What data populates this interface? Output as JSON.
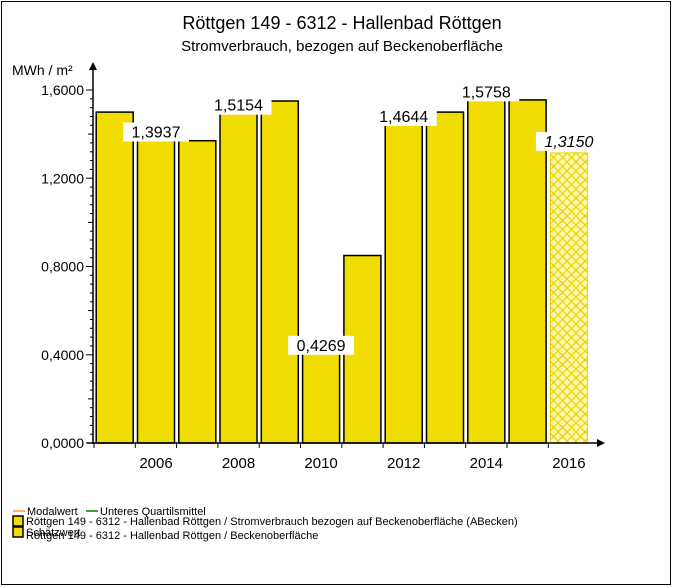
{
  "colors": {
    "bar_fill": "#f0dc00",
    "bar_stroke": "#000000",
    "forecast_fill": "#fff7b0",
    "forecast_hatch": "#e8d400",
    "modal_line": "#ff9933",
    "quartile_line": "#008000"
  },
  "chart_data": {
    "type": "bar",
    "title": "Röttgen 149 - 6312 - Hallenbad Röttgen",
    "subtitle": "Stromverbrauch, bezogen auf Beckenoberfläche",
    "ylabel": "MWh / m²",
    "xlabel": "",
    "ylim": [
      0,
      1.6
    ],
    "yticks": [
      "0,0000",
      "0,4000",
      "0,8000",
      "1,2000",
      "1,6000"
    ],
    "ytick_values": [
      0,
      0.4,
      0.8,
      1.2,
      1.6
    ],
    "xticks": [
      "2006",
      "2008",
      "2010",
      "2012",
      "2014",
      "2016"
    ],
    "xtick_years": [
      2006,
      2008,
      2010,
      2012,
      2014,
      2016
    ],
    "years": [
      2005,
      2006,
      2007,
      2008,
      2009,
      2010,
      2011,
      2012,
      2013,
      2014,
      2015,
      2016
    ],
    "values": [
      1.5,
      1.3937,
      1.37,
      1.5154,
      1.55,
      0.4269,
      0.85,
      1.4644,
      1.5,
      1.5758,
      1.555,
      1.315
    ],
    "estimated": [
      false,
      false,
      false,
      false,
      false,
      false,
      false,
      false,
      false,
      false,
      false,
      true
    ],
    "data_labels": [
      {
        "year": 2006,
        "text": "1,3937"
      },
      {
        "year": 2008,
        "text": "1,5154"
      },
      {
        "year": 2010,
        "text": "0,4269"
      },
      {
        "year": 2012,
        "text": "1,4644"
      },
      {
        "year": 2014,
        "text": "1,5758"
      },
      {
        "year": 2016,
        "text": "1,3150"
      }
    ],
    "grid": false,
    "legend_position": "bottom-left"
  },
  "legend": {
    "modal_label": "Modalwert",
    "quartile_label": "Unteres Quartilsmittel",
    "series_label": "Röttgen 149 - 6312 - Hallenbad Röttgen / Stromverbrauch bezogen auf Beckenoberfläche (ABecken)",
    "forecast_label": "Schätzwert",
    "series2_label": "Röttgen 149 - 6312 - Hallenbad Röttgen / Beckenoberfläche"
  }
}
